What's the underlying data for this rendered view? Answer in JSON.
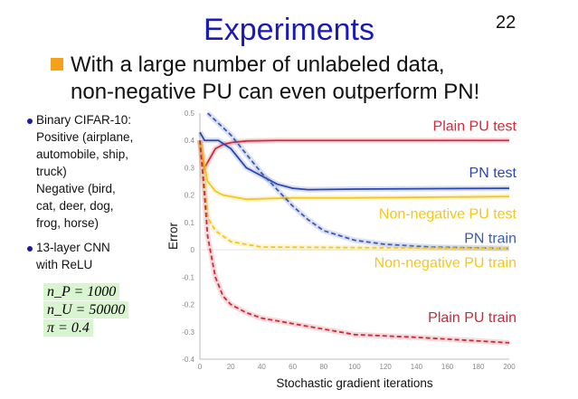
{
  "slide": {
    "title": "Experiments",
    "page_number": "22",
    "headline": [
      "With a large number of unlabeled data,",
      "non-negative PU can even outperform PN!"
    ],
    "bullets": [
      {
        "lines": [
          "Binary CIFAR-10:",
          "Positive (airplane,",
          "automobile, ship,",
          "truck)",
          "Negative (bird,",
          "cat, deer, dog,",
          "frog, horse)"
        ]
      },
      {
        "lines": [
          "13-layer CNN",
          "with ReLU"
        ]
      }
    ],
    "params": [
      "n_P = 1000",
      "n_U = 50000",
      "π = 0.4"
    ]
  },
  "chart_data": {
    "type": "line",
    "xlabel": "Stochastic gradient iterations",
    "ylabel": "Error",
    "xlim": [
      0,
      200
    ],
    "ylim": [
      -0.4,
      0.5
    ],
    "xticks": [
      0,
      20,
      40,
      60,
      80,
      100,
      120,
      140,
      160,
      180,
      200
    ],
    "yticks": [
      0.5,
      0.4,
      0.3,
      0.2,
      0.1,
      0,
      -0.1,
      -0.2,
      -0.3,
      -0.4
    ],
    "series": [
      {
        "name": "Plain PU test",
        "color": "#d8283a",
        "dashed": false,
        "labelY": 0.455,
        "x": [
          0,
          3,
          6,
          10,
          15,
          20,
          30,
          50,
          200
        ],
        "y": [
          0.4,
          0.3,
          0.33,
          0.37,
          0.385,
          0.392,
          0.398,
          0.4,
          0.4
        ]
      },
      {
        "name": "PN test",
        "color": "#2a46b0",
        "dashed": false,
        "labelY": 0.285,
        "x": [
          0,
          3,
          12,
          20,
          30,
          40,
          50,
          60,
          70,
          100,
          200
        ],
        "y": [
          0.43,
          0.4,
          0.4,
          0.37,
          0.3,
          0.27,
          0.24,
          0.225,
          0.22,
          0.222,
          0.225
        ]
      },
      {
        "name": "Non-negative PU test",
        "color": "#f2c81c",
        "dashed": false,
        "labelY": 0.135,
        "x": [
          0,
          5,
          10,
          15,
          30,
          60,
          100,
          200
        ],
        "y": [
          0.4,
          0.25,
          0.215,
          0.2,
          0.185,
          0.19,
          0.19,
          0.195
        ]
      },
      {
        "name": "PN train",
        "color": "#3a5ab8",
        "dashed": true,
        "labelY": 0.045,
        "x": [
          5,
          20,
          30,
          40,
          50,
          60,
          70,
          80,
          100,
          120,
          150,
          200
        ],
        "y": [
          0.5,
          0.42,
          0.35,
          0.28,
          0.22,
          0.16,
          0.11,
          0.07,
          0.035,
          0.02,
          0.01,
          0.005
        ]
      },
      {
        "name": "Non-negative PU train",
        "color": "#f2c81c",
        "dashed": true,
        "labelY": -0.045,
        "x": [
          0,
          5,
          10,
          20,
          40,
          200
        ],
        "y": [
          0.4,
          0.12,
          0.07,
          0.03,
          0.01,
          0.005
        ]
      },
      {
        "name": "Plain PU train",
        "color": "#cc2a3a",
        "dashed": true,
        "labelY": -0.245,
        "x": [
          0,
          3,
          5,
          10,
          15,
          20,
          30,
          40,
          60,
          80,
          100,
          140,
          200
        ],
        "y": [
          0.4,
          0.2,
          0.05,
          -0.1,
          -0.17,
          -0.2,
          -0.23,
          -0.25,
          -0.27,
          -0.29,
          -0.31,
          -0.32,
          -0.34
        ]
      }
    ]
  }
}
